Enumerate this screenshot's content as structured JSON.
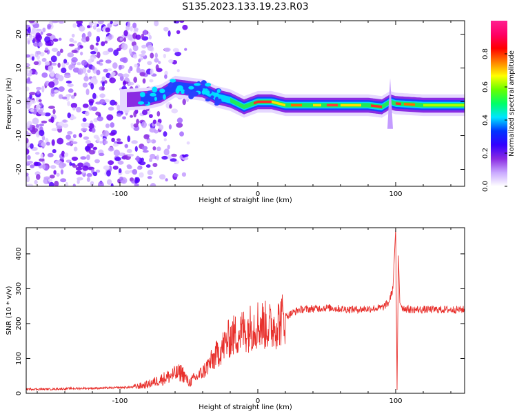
{
  "title": "S135.2023.133.19.23.R03",
  "chart_data": [
    {
      "type": "heatmap",
      "xlabel": "Height of straight line (km)",
      "ylabel": "Frequency (Hz)",
      "xlim": [
        -168,
        150
      ],
      "ylim": [
        -25,
        24
      ],
      "xticks": [
        -100,
        0,
        100
      ],
      "yticks": [
        -20,
        -10,
        0,
        10,
        20
      ],
      "colorbar": {
        "label": "Normalized spectral amplitude",
        "range": [
          0,
          1
        ],
        "ticks": [
          0.0,
          0.2,
          0.4,
          0.6,
          0.8
        ],
        "tick_labels": [
          "0.0",
          "0.2",
          "0.4",
          "0.6",
          "0.8"
        ],
        "colors": [
          "#ffffff",
          "#c9a8ff",
          "#8a2be2",
          "#3300ff",
          "#0033ff",
          "#00e5ff",
          "#00ff66",
          "#66ff00",
          "#ffff00",
          "#ff8000",
          "#ff0000",
          "#ff0066",
          "#ff2090"
        ]
      },
      "ridge": [
        {
          "x": -100,
          "y": 0.5
        },
        {
          "x": -80,
          "y": 1.0
        },
        {
          "x": -70,
          "y": 2.0
        },
        {
          "x": -60,
          "y": 4.5
        },
        {
          "x": -50,
          "y": 4.0
        },
        {
          "x": -40,
          "y": 3.5
        },
        {
          "x": -30,
          "y": 1.5
        },
        {
          "x": -20,
          "y": 0.5
        },
        {
          "x": -10,
          "y": -1.5
        },
        {
          "x": 0,
          "y": 0
        },
        {
          "x": 10,
          "y": 0
        },
        {
          "x": 20,
          "y": -1.0
        },
        {
          "x": 40,
          "y": -1.0
        },
        {
          "x": 60,
          "y": -1.0
        },
        {
          "x": 80,
          "y": -1.0
        },
        {
          "x": 90,
          "y": -1.5
        },
        {
          "x": 96,
          "y": 0
        },
        {
          "x": 100,
          "y": -0.5
        },
        {
          "x": 120,
          "y": -1.0
        },
        {
          "x": 150,
          "y": -1.0
        }
      ],
      "scatter_x_range": [
        -168,
        -50
      ],
      "scatter_y_range": [
        -25,
        24
      ]
    },
    {
      "type": "line",
      "xlabel": "Height of straight line (km)",
      "ylabel": "SNR (10 * v/v)",
      "xlim": [
        -168,
        150
      ],
      "ylim": [
        0,
        475
      ],
      "xticks": [
        -100,
        0,
        100
      ],
      "yticks": [
        0,
        100,
        200,
        300,
        400
      ],
      "color": "#e8302c",
      "x": [
        -168,
        -150,
        -130,
        -110,
        -90,
        -80,
        -70,
        -60,
        -55,
        -50,
        -40,
        -30,
        -20,
        -10,
        0,
        10,
        20,
        30,
        50,
        70,
        90,
        95,
        98,
        100,
        101,
        102,
        103,
        105,
        110,
        130,
        150
      ],
      "y": [
        12,
        12,
        14,
        15,
        18,
        25,
        40,
        55,
        60,
        30,
        60,
        110,
        160,
        180,
        200,
        190,
        220,
        240,
        245,
        240,
        245,
        260,
        300,
        475,
        10,
        395,
        260,
        245,
        240,
        240,
        240
      ]
    }
  ]
}
